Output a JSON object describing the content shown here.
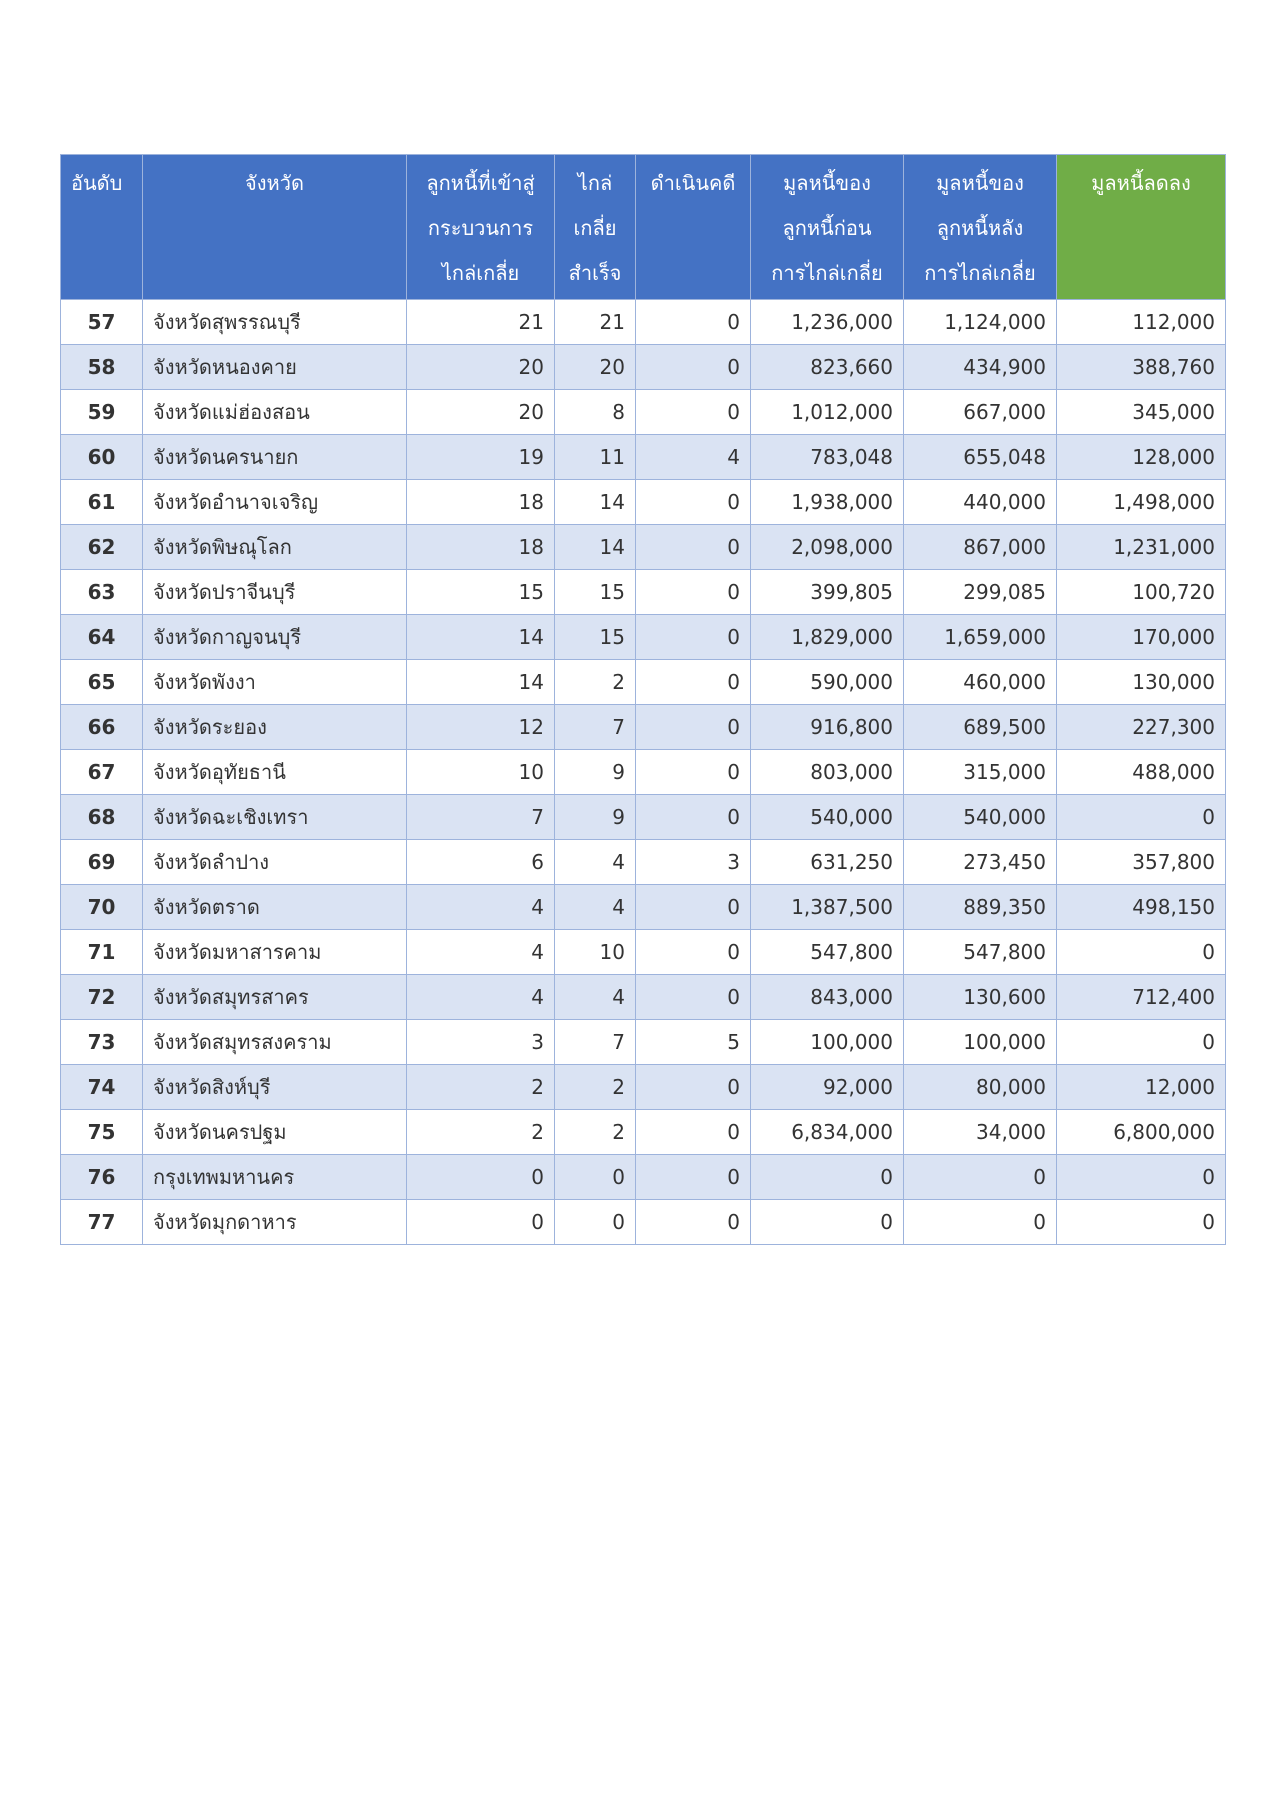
{
  "table": {
    "header": [
      [
        "อันดับ"
      ],
      [
        "จังหวัด"
      ],
      [
        "ลูกหนี้ที่เข้าสู่",
        "กระบวนการ",
        "ไกล่เกลี่ย"
      ],
      [
        "ไกล่",
        "เกลี่ย",
        "สำเร็จ"
      ],
      [
        "ดำเนินคดี"
      ],
      [
        "มูลหนี้ของ",
        "ลูกหนี้ก่อน",
        "การไกล่เกลี่ย"
      ],
      [
        "มูลหนี้ของ",
        "ลูกหนี้หลัง",
        "การไกล่เกลี่ย"
      ],
      [
        "มูลหนี้ลดลง"
      ]
    ],
    "rows": [
      [
        "57",
        "จังหวัดสุพรรณบุรี",
        "21",
        "21",
        "0",
        "1,236,000",
        "1,124,000",
        "112,000"
      ],
      [
        "58",
        "จังหวัดหนองคาย",
        "20",
        "20",
        "0",
        "823,660",
        "434,900",
        "388,760"
      ],
      [
        "59",
        "จังหวัดแม่ฮ่องสอน",
        "20",
        "8",
        "0",
        "1,012,000",
        "667,000",
        "345,000"
      ],
      [
        "60",
        "จังหวัดนครนายก",
        "19",
        "11",
        "4",
        "783,048",
        "655,048",
        "128,000"
      ],
      [
        "61",
        "จังหวัดอำนาจเจริญ",
        "18",
        "14",
        "0",
        "1,938,000",
        "440,000",
        "1,498,000"
      ],
      [
        "62",
        "จังหวัดพิษณุโลก",
        "18",
        "14",
        "0",
        "2,098,000",
        "867,000",
        "1,231,000"
      ],
      [
        "63",
        "จังหวัดปราจีนบุรี",
        "15",
        "15",
        "0",
        "399,805",
        "299,085",
        "100,720"
      ],
      [
        "64",
        "จังหวัดกาญจนบุรี",
        "14",
        "15",
        "0",
        "1,829,000",
        "1,659,000",
        "170,000"
      ],
      [
        "65",
        "จังหวัดพังงา",
        "14",
        "2",
        "0",
        "590,000",
        "460,000",
        "130,000"
      ],
      [
        "66",
        "จังหวัดระยอง",
        "12",
        "7",
        "0",
        "916,800",
        "689,500",
        "227,300"
      ],
      [
        "67",
        "จังหวัดอุทัยธานี",
        "10",
        "9",
        "0",
        "803,000",
        "315,000",
        "488,000"
      ],
      [
        "68",
        "จังหวัดฉะเชิงเทรา",
        "7",
        "9",
        "0",
        "540,000",
        "540,000",
        "0"
      ],
      [
        "69",
        "จังหวัดลำปาง",
        "6",
        "4",
        "3",
        "631,250",
        "273,450",
        "357,800"
      ],
      [
        "70",
        "จังหวัดตราด",
        "4",
        "4",
        "0",
        "1,387,500",
        "889,350",
        "498,150"
      ],
      [
        "71",
        "จังหวัดมหาสารคาม",
        "4",
        "10",
        "0",
        "547,800",
        "547,800",
        "0"
      ],
      [
        "72",
        "จังหวัดสมุทรสาคร",
        "4",
        "4",
        "0",
        "843,000",
        "130,600",
        "712,400"
      ],
      [
        "73",
        "จังหวัดสมุทรสงคราม",
        "3",
        "7",
        "5",
        "100,000",
        "100,000",
        "0"
      ],
      [
        "74",
        "จังหวัดสิงห์บุรี",
        "2",
        "2",
        "0",
        "92,000",
        "80,000",
        "12,000"
      ],
      [
        "75",
        "จังหวัดนครปฐม",
        "2",
        "2",
        "0",
        "6,834,000",
        "34,000",
        "6,800,000"
      ],
      [
        "76",
        "กรุงเทพมหานคร",
        "0",
        "0",
        "0",
        "0",
        "0",
        "0"
      ],
      [
        "77",
        "จังหวัดมุกดาหาร",
        "0",
        "0",
        "0",
        "0",
        "0",
        "0"
      ]
    ]
  }
}
